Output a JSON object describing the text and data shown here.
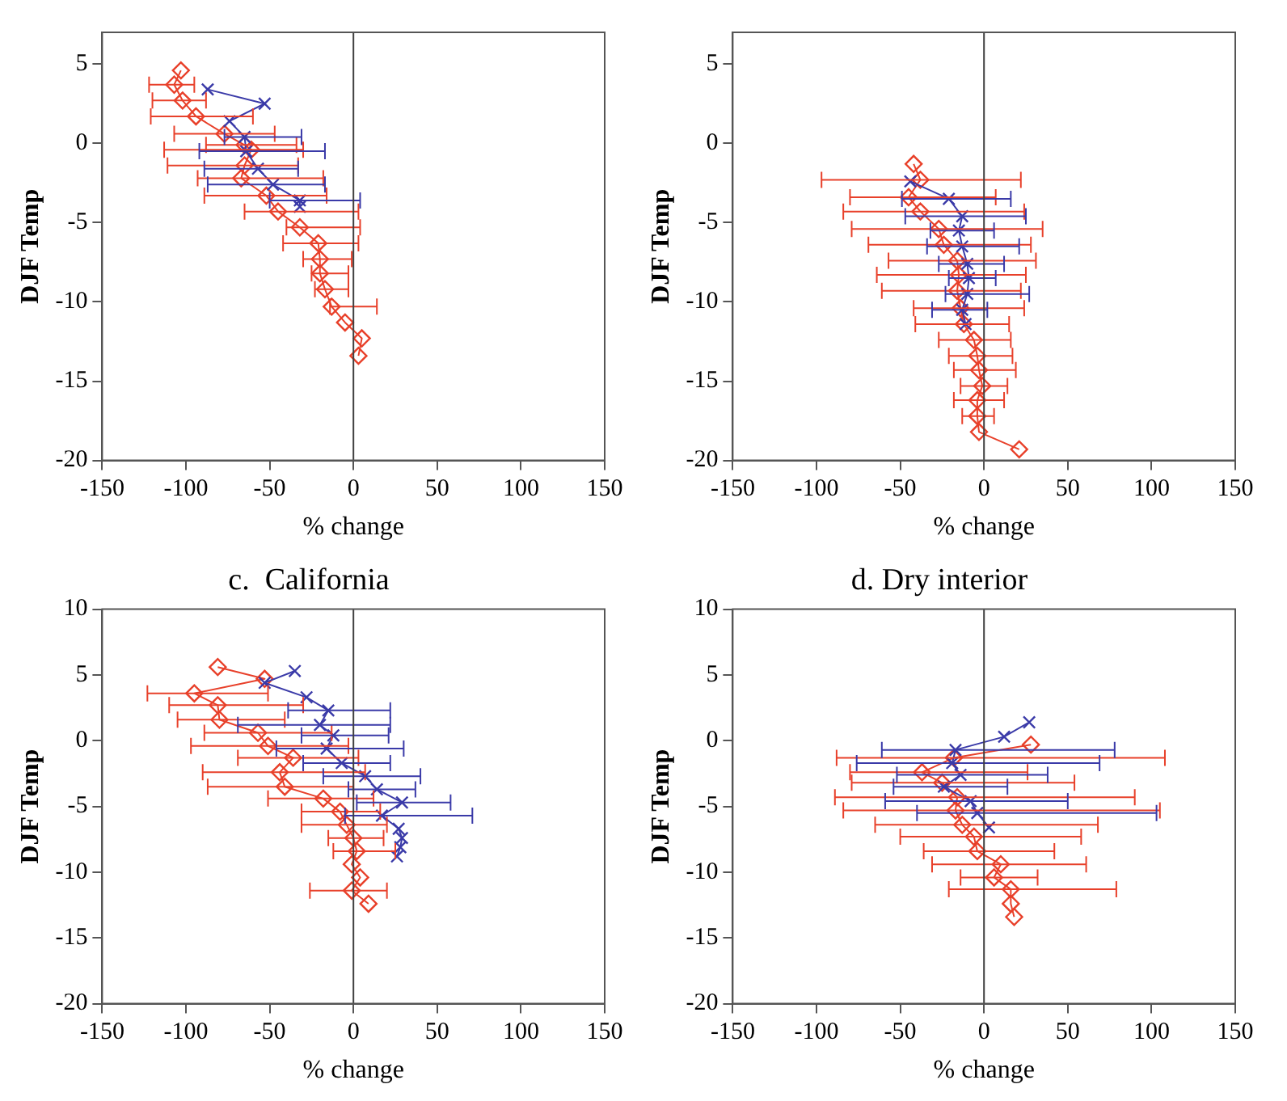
{
  "chart_data": [
    {
      "type": "line",
      "xlabel": "% change",
      "ylabel": "DJF Temp",
      "xlim": [
        -150,
        150
      ],
      "xticks": [
        -150,
        -100,
        -50,
        0,
        50,
        100,
        150
      ],
      "ylim": [
        -20,
        7
      ],
      "yticks": [
        -20,
        -15,
        -10,
        -5,
        0,
        5
      ],
      "ref_lines": [
        {
          "axis": "x",
          "value": 0,
          "color": "#404040"
        }
      ],
      "series": [
        {
          "color": "#e8402a",
          "marker": "diamond",
          "x": [
            -103,
            -107,
            -102,
            -94,
            -77,
            -65,
            -61,
            -65,
            -67,
            -52,
            -45,
            -32,
            -21,
            -20,
            -20,
            -17,
            -13,
            -5,
            5,
            3
          ],
          "values": [
            4.6,
            3.7,
            2.7,
            1.7,
            0.6,
            -0.1,
            -0.4,
            -1.4,
            -2.2,
            -3.3,
            -4.3,
            -5.3,
            -6.3,
            -7.3,
            -8.2,
            -9.2,
            -10.3,
            -11.3,
            -12.3,
            -13.4
          ],
          "xerrors": [
            null,
            [
              -122,
              -95
            ],
            [
              -120,
              -88
            ],
            [
              -121,
              -60
            ],
            [
              -107,
              -47
            ],
            [
              -88,
              -34
            ],
            [
              -113,
              -30
            ],
            [
              -111,
              -33
            ],
            [
              -93,
              -18
            ],
            [
              -89,
              -16
            ],
            [
              -65,
              3
            ],
            [
              -40,
              4
            ],
            [
              -42,
              3
            ],
            [
              -30,
              -1
            ],
            [
              -25,
              -3
            ],
            [
              -23,
              -3
            ],
            [
              -14,
              14
            ],
            null,
            null,
            null
          ]
        },
        {
          "color": "#3a3aa8",
          "marker": "cross",
          "x": [
            -87,
            -53,
            -74,
            -65,
            -64,
            -57,
            -48,
            -32,
            -32
          ],
          "values": [
            3.4,
            2.5,
            1.4,
            0.4,
            -0.5,
            -1.6,
            -2.6,
            -3.6,
            -4.0
          ],
          "xerrors": [
            null,
            null,
            null,
            [
              -77,
              -31
            ],
            [
              -92,
              -17
            ],
            [
              -89,
              -33
            ],
            [
              -87,
              -17
            ],
            [
              -50,
              4
            ],
            null
          ]
        }
      ]
    },
    {
      "type": "line",
      "xlabel": "% change",
      "ylabel": "DJF Temp",
      "xlim": [
        -150,
        150
      ],
      "xticks": [
        -150,
        -100,
        -50,
        0,
        50,
        100,
        150
      ],
      "ylim": [
        -20,
        7
      ],
      "yticks": [
        -20,
        -15,
        -10,
        -5,
        0,
        5
      ],
      "ref_lines": [
        {
          "axis": "x",
          "value": 0,
          "color": "#404040"
        }
      ],
      "series": [
        {
          "color": "#e8402a",
          "marker": "diamond",
          "x": [
            -42,
            -38,
            -45,
            -38,
            -27,
            -24,
            -16,
            -15,
            -16,
            -14,
            -12,
            -6,
            -4,
            -3,
            -1,
            -4,
            -4,
            -3,
            21
          ],
          "values": [
            -1.3,
            -2.3,
            -3.4,
            -4.3,
            -5.4,
            -6.4,
            -7.4,
            -8.3,
            -9.3,
            -10.4,
            -11.4,
            -12.4,
            -13.4,
            -14.3,
            -15.3,
            -16.2,
            -17.2,
            -18.2,
            -19.3
          ],
          "xerrors": [
            null,
            [
              -97,
              22
            ],
            [
              -80,
              7
            ],
            [
              -84,
              24
            ],
            [
              -79,
              35
            ],
            [
              -69,
              28
            ],
            [
              -57,
              31
            ],
            [
              -64,
              25
            ],
            [
              -61,
              22
            ],
            [
              -42,
              24
            ],
            [
              -41,
              15
            ],
            [
              -27,
              16
            ],
            [
              -21,
              17
            ],
            [
              -18,
              19
            ],
            [
              -14,
              14
            ],
            [
              -18,
              12
            ],
            [
              -13,
              6
            ],
            null,
            null
          ]
        },
        {
          "color": "#3a3aa8",
          "marker": "cross",
          "x": [
            -44,
            -21,
            -13,
            -15,
            -13,
            -10,
            -9,
            -10,
            -13,
            -11
          ],
          "values": [
            -2.4,
            -3.5,
            -4.6,
            -5.5,
            -6.5,
            -7.6,
            -8.5,
            -9.5,
            -10.5,
            -11.4
          ],
          "xerrors": [
            null,
            [
              -49,
              16
            ],
            [
              -47,
              25
            ],
            [
              -32,
              6
            ],
            [
              -34,
              21
            ],
            [
              -27,
              12
            ],
            [
              -21,
              7
            ],
            [
              -23,
              27
            ],
            [
              -31,
              2
            ],
            null
          ]
        }
      ]
    },
    {
      "type": "line",
      "title": "c.  California",
      "xlabel": "% change",
      "ylabel": "DJF Temp",
      "xlim": [
        -150,
        150
      ],
      "xticks": [
        -150,
        -100,
        -50,
        0,
        50,
        100,
        150
      ],
      "ylim": [
        -20,
        10
      ],
      "yticks": [
        -20,
        -15,
        -10,
        -5,
        0,
        5,
        10
      ],
      "ref_lines": [
        {
          "axis": "x",
          "value": 0,
          "color": "#404040"
        }
      ],
      "series": [
        {
          "color": "#e8402a",
          "marker": "diamond",
          "x": [
            -81,
            -53,
            -95,
            -81,
            -80,
            -57,
            -51,
            -36,
            -44,
            -41,
            -18,
            -8,
            -4,
            0,
            2,
            -1,
            4,
            -1,
            9
          ],
          "values": [
            5.6,
            4.7,
            3.6,
            2.7,
            1.6,
            0.6,
            -0.4,
            -1.3,
            -2.4,
            -3.5,
            -4.4,
            -5.4,
            -6.4,
            -7.4,
            -8.4,
            -9.4,
            -10.4,
            -11.4,
            -12.4
          ],
          "xerrors": [
            null,
            null,
            [
              -123,
              -51
            ],
            [
              -110,
              -30
            ],
            [
              -105,
              -41
            ],
            [
              -89,
              -13
            ],
            [
              -97,
              -3
            ],
            [
              -69,
              3
            ],
            [
              -90,
              7
            ],
            [
              -87,
              0
            ],
            [
              -51,
              12
            ],
            [
              -31,
              16
            ],
            [
              -31,
              20
            ],
            [
              -15,
              18
            ],
            [
              -12,
              25
            ],
            null,
            null,
            [
              -26,
              20
            ],
            null
          ]
        },
        {
          "color": "#3a3aa8",
          "marker": "cross",
          "x": [
            -35,
            -53,
            -28,
            -15,
            -20,
            -12,
            -16,
            -7,
            7,
            14,
            29,
            17,
            27,
            29,
            28,
            26
          ],
          "values": [
            5.3,
            4.4,
            3.3,
            2.3,
            1.2,
            0.4,
            -0.6,
            -1.7,
            -2.7,
            -3.7,
            -4.7,
            -5.7,
            -6.7,
            -7.4,
            -8.1,
            -8.8
          ],
          "xerrors": [
            null,
            null,
            null,
            [
              -39,
              22
            ],
            [
              -69,
              22
            ],
            [
              -31,
              21
            ],
            [
              -46,
              30
            ],
            [
              -30,
              22
            ],
            [
              -18,
              40
            ],
            [
              -3,
              37
            ],
            [
              2,
              58
            ],
            [
              -5,
              71
            ],
            null,
            null,
            null,
            null
          ]
        }
      ]
    },
    {
      "type": "line",
      "title": "d. Dry interior",
      "xlabel": "% change",
      "ylabel": "DJF Temp",
      "xlim": [
        -150,
        150
      ],
      "xticks": [
        -150,
        -100,
        -50,
        0,
        50,
        100,
        150
      ],
      "ylim": [
        -20,
        10
      ],
      "yticks": [
        -20,
        -15,
        -10,
        -5,
        0,
        5,
        10
      ],
      "ref_lines": [
        {
          "axis": "x",
          "value": 0,
          "color": "#404040"
        }
      ],
      "series": [
        {
          "color": "#e8402a",
          "marker": "diamond",
          "x": [
            28,
            -18,
            -37,
            -25,
            -16,
            -17,
            -13,
            -6,
            -4,
            10,
            6,
            16,
            16,
            18
          ],
          "values": [
            -0.3,
            -1.3,
            -2.4,
            -3.2,
            -4.3,
            -5.3,
            -6.4,
            -7.3,
            -8.4,
            -9.4,
            -10.4,
            -11.3,
            -12.4,
            -13.4
          ],
          "xerrors": [
            null,
            [
              -88,
              108
            ],
            [
              -80,
              26
            ],
            [
              -79,
              54
            ],
            [
              -89,
              90
            ],
            [
              -84,
              105
            ],
            [
              -65,
              68
            ],
            [
              -50,
              58
            ],
            [
              -36,
              42
            ],
            [
              -31,
              61
            ],
            [
              -14,
              32
            ],
            [
              -21,
              79
            ],
            null,
            null
          ]
        },
        {
          "color": "#3a3aa8",
          "marker": "cross",
          "x": [
            27,
            12,
            -17,
            -19,
            -14,
            -24,
            -8,
            -4,
            3
          ],
          "values": [
            1.4,
            0.3,
            -0.7,
            -1.7,
            -2.6,
            -3.5,
            -4.6,
            -5.5,
            -6.6
          ],
          "xerrors": [
            null,
            null,
            [
              -61,
              78
            ],
            [
              -76,
              69
            ],
            [
              -52,
              38
            ],
            [
              -54,
              14
            ],
            [
              -59,
              50
            ],
            [
              -40,
              103
            ],
            null
          ]
        }
      ]
    }
  ]
}
